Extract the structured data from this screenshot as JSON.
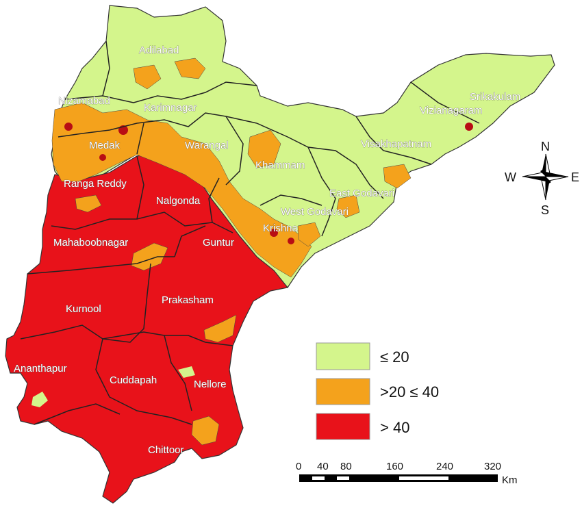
{
  "colors": {
    "low": "#d4f58c",
    "mid": "#f4a21c",
    "high": "#e8121a",
    "boundary": "#333333"
  },
  "districts": [
    {
      "name": "Adilabad",
      "class": "low"
    },
    {
      "name": "Nizamabad",
      "class": "low"
    },
    {
      "name": "Karimnagar",
      "class": "low"
    },
    {
      "name": "Medak",
      "class": "mid"
    },
    {
      "name": "Warangal",
      "class": "low"
    },
    {
      "name": "Khammam",
      "class": "low"
    },
    {
      "name": "Srikakulam",
      "class": "low"
    },
    {
      "name": "Vizianagaram",
      "class": "low"
    },
    {
      "name": "Visakhapatnam",
      "class": "low"
    },
    {
      "name": "East Godavari",
      "class": "low"
    },
    {
      "name": "West Godavari",
      "class": "low"
    },
    {
      "name": "Krishna",
      "class": "mid"
    },
    {
      "name": "Ranga Reddy",
      "class": "mid"
    },
    {
      "name": "Nalgonda",
      "class": "high"
    },
    {
      "name": "Mahaboobnagar",
      "class": "high"
    },
    {
      "name": "Guntur",
      "class": "high"
    },
    {
      "name": "Kurnool",
      "class": "high"
    },
    {
      "name": "Prakasham",
      "class": "high"
    },
    {
      "name": "Ananthapur",
      "class": "high"
    },
    {
      "name": "Cuddapah",
      "class": "high"
    },
    {
      "name": "Nellore",
      "class": "high"
    },
    {
      "name": "Chittoor",
      "class": "high"
    }
  ],
  "legend": [
    {
      "label": "≤ 20",
      "color": "#d4f58c"
    },
    {
      "label": ">20 ≤ 40",
      "color": "#f4a21c"
    },
    {
      "label": "> 40",
      "color": "#e8121a"
    }
  ],
  "compass": {
    "n": "N",
    "s": "S",
    "e": "E",
    "w": "W"
  },
  "scale": {
    "ticks": [
      "0",
      "40",
      "80",
      "160",
      "240",
      "320"
    ],
    "unit": "Km"
  }
}
